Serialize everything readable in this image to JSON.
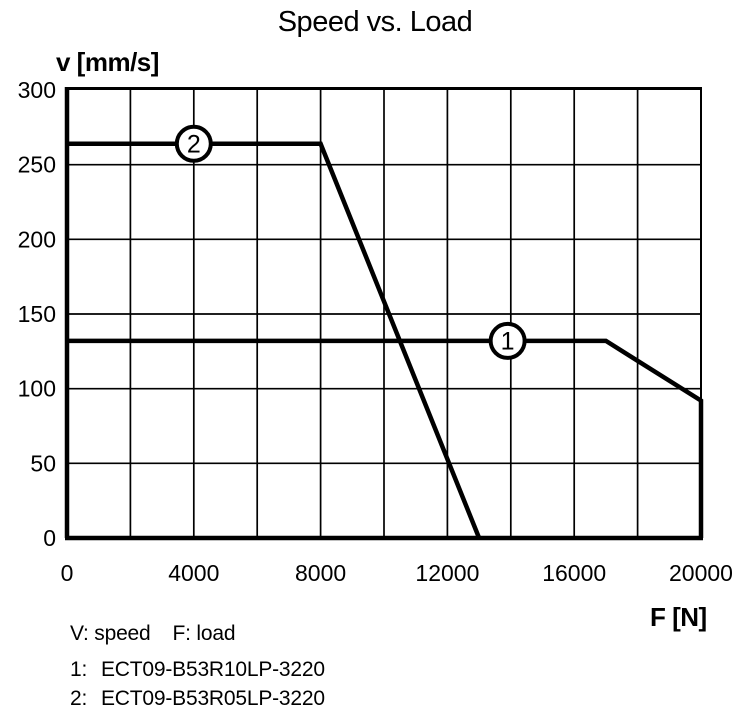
{
  "page": {
    "background": "#ffffff",
    "foreground": "#000000"
  },
  "chart_data": {
    "type": "line",
    "title": "Speed vs. Load",
    "xlabel": "F [N]",
    "ylabel": "v [mm/s]",
    "xlim": [
      0,
      20000
    ],
    "ylim": [
      0,
      300
    ],
    "x_ticks": [
      0,
      4000,
      8000,
      12000,
      16000,
      20000
    ],
    "y_ticks": [
      0,
      50,
      100,
      150,
      200,
      250,
      300
    ],
    "grid": {
      "visible": true,
      "x_step": 2000,
      "y_step": 50
    },
    "line_color": "#000000",
    "series": [
      {
        "name": "ECT09-B53R10LP-3220",
        "marker_label": "1",
        "marker_x": 13900,
        "marker_y": 132,
        "points": [
          [
            0,
            132
          ],
          [
            17000,
            132
          ],
          [
            20000,
            92
          ],
          [
            20000,
            0
          ]
        ]
      },
      {
        "name": "ECT09-B53R05LP-3220",
        "marker_label": "2",
        "marker_x": 4000,
        "marker_y": 264,
        "points": [
          [
            0,
            264
          ],
          [
            8000,
            264
          ],
          [
            13000,
            0
          ]
        ]
      }
    ],
    "legend_position": "below-left"
  },
  "footer": {
    "notes": [
      "V: speed",
      "F: load"
    ],
    "items": [
      {
        "num": "1:",
        "label": "ECT09-B53R10LP-3220"
      },
      {
        "num": "2:",
        "label": "ECT09-B53R05LP-3220"
      }
    ]
  }
}
